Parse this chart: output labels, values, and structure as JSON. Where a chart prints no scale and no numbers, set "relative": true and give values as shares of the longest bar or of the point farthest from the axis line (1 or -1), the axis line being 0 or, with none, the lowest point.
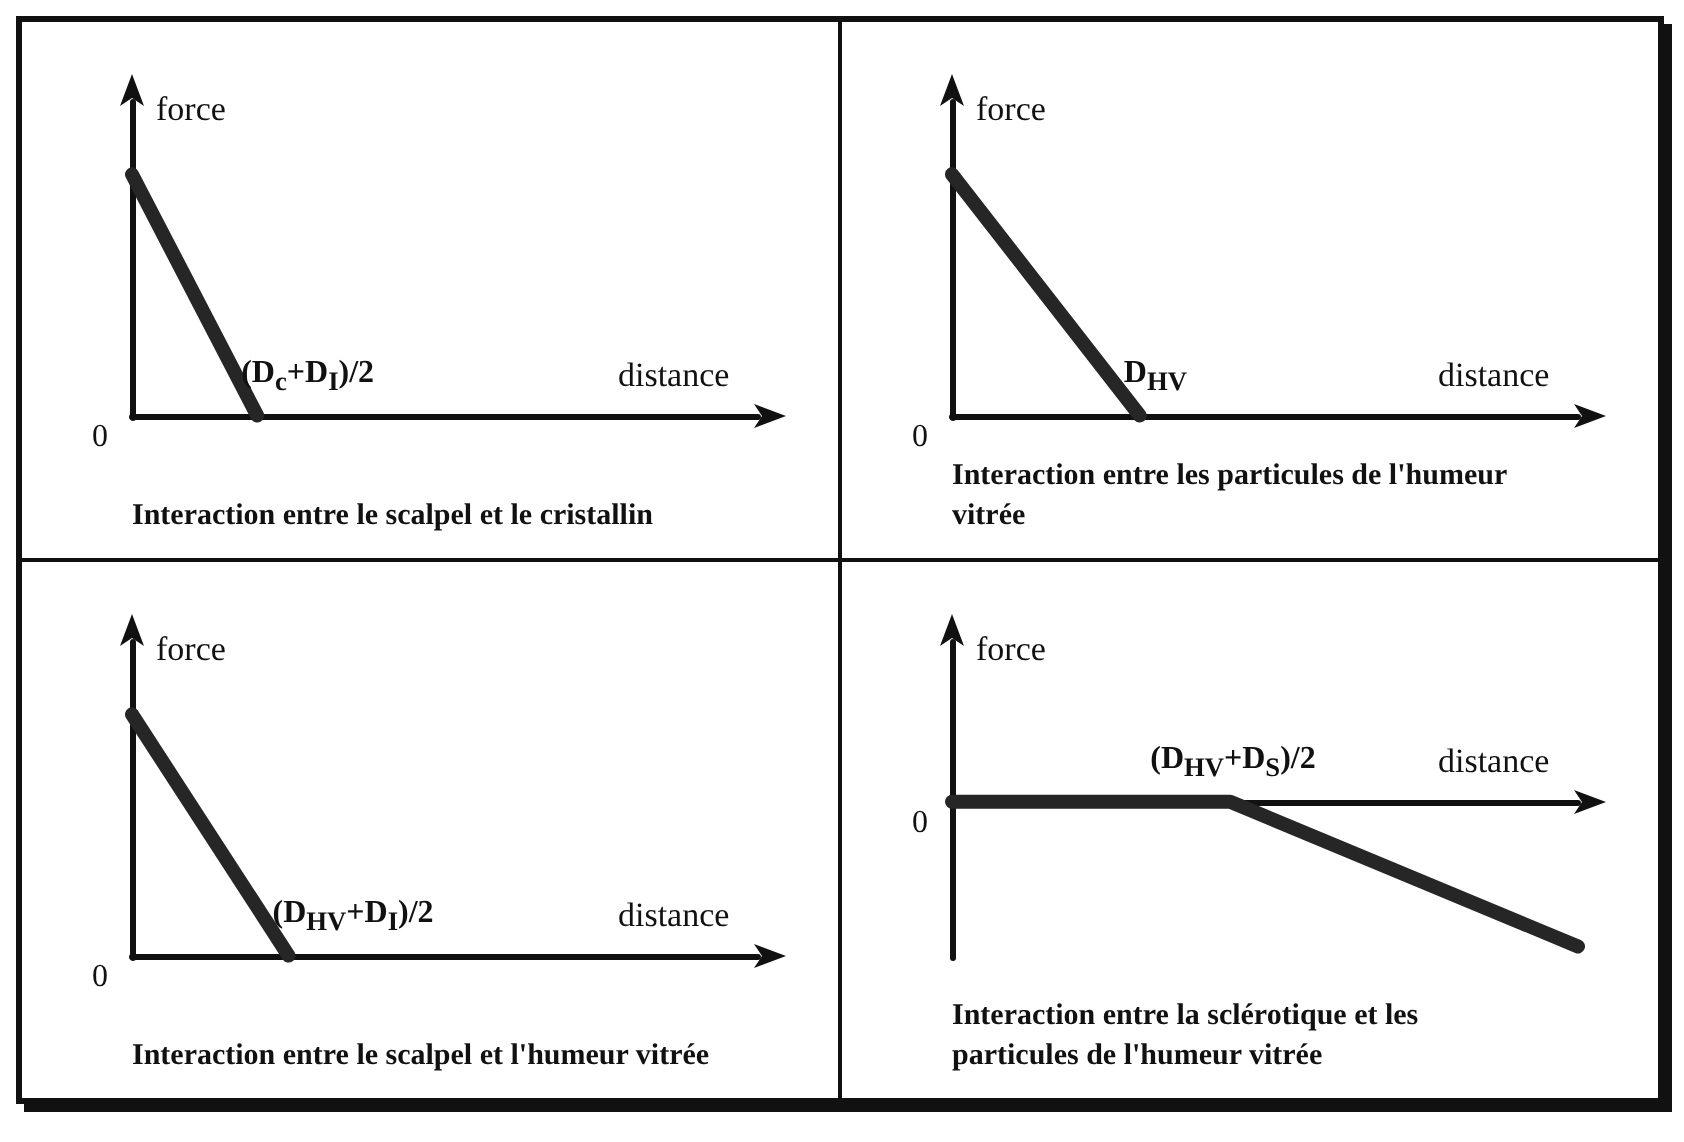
{
  "chart_data": [
    {
      "type": "line",
      "title": "Interaction entre le scalpel et le cristallin",
      "xlabel": "distance",
      "ylabel": "force",
      "relative": true,
      "categories": [
        null,
        null,
        null,
        null,
        null,
        null
      ],
      "series": [
        {
          "color": "#262626",
          "values": [
            1,
            0,
            null,
            null,
            null,
            null
          ]
        }
      ],
      "annotations": [
        "(D$_{c}$+D$_{I}$)/2",
        "0"
      ],
      "marker": "none",
      "grid": false
    },
    {
      "type": "line",
      "title": "Interaction entre les particules de l'humeur vitrée",
      "xlabel": "distance",
      "ylabel": "force",
      "relative": true,
      "categories": [
        null,
        null,
        null,
        null,
        null,
        null,
        null,
        null,
        null,
        null,
        null
      ],
      "series": [
        {
          "color": "#262626",
          "values": [
            1,
            null,
            null,
            0,
            null,
            null,
            null,
            null,
            null,
            null,
            null
          ]
        }
      ],
      "annotations": [
        "D$_{HV}$",
        "0"
      ],
      "marker": "none",
      "grid": false
    },
    {
      "type": "line",
      "title": "Interaction entre le scalpel et l'humeur vitrée",
      "xlabel": "distance",
      "ylabel": "force",
      "relative": true,
      "categories": [
        null,
        null,
        null,
        null,
        null,
        null,
        null,
        null,
        null,
        null,
        null,
        null,
        null
      ],
      "series": [
        {
          "color": "#262626",
          "values": [
            1,
            null,
            null,
            0,
            null,
            null,
            null,
            null,
            null,
            null,
            null,
            null,
            null
          ]
        }
      ],
      "annotations": [
        "(D$_{HV}$+D$_{I}$)/2",
        "0"
      ],
      "marker": "none",
      "grid": false
    },
    {
      "type": "line",
      "title": "Interaction entre la sclérotique et les particules de l'humeur vitrée",
      "xlabel": "distance",
      "ylabel": "force",
      "relative": true,
      "categories": [
        null,
        null,
        null,
        null,
        null,
        null,
        null,
        null,
        null,
        null
      ],
      "series": [
        {
          "color": "#262626",
          "values": [
            0,
            null,
            null,
            null,
            0,
            null,
            null,
            null,
            null,
            -1
          ]
        }
      ],
      "annotations": [
        "(D$_{HV}$+D$_{S}$)/2",
        "0"
      ],
      "marker": "none",
      "grid": false
    }
  ]
}
